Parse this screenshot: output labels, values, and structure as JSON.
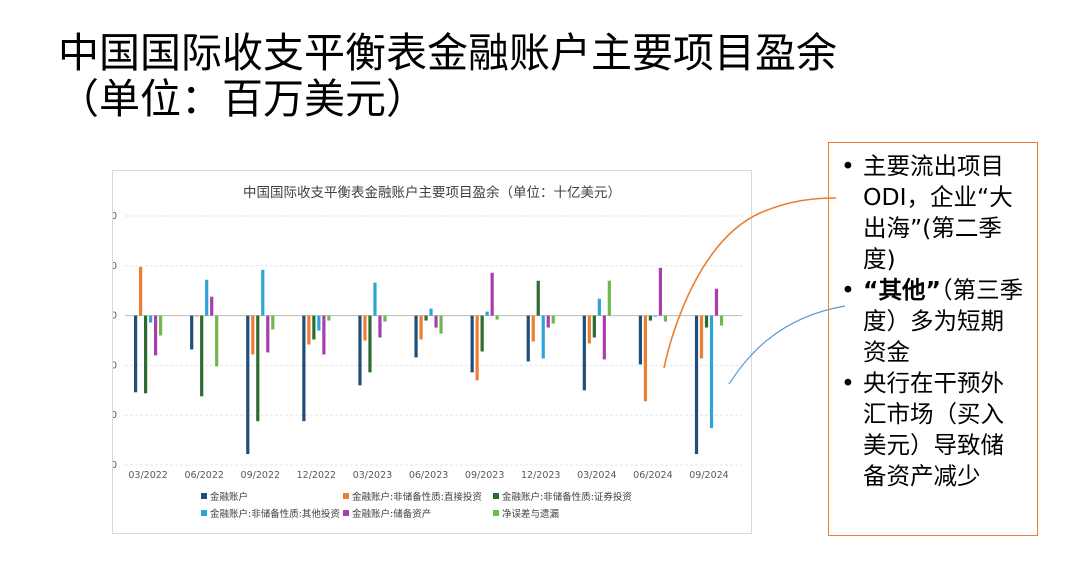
{
  "slide": {
    "title_line1": "中国国际收支平衡表金融账户主要项目盈余",
    "title_line2": "（单位：百万美元）"
  },
  "notes": [
    {
      "bullet": "•",
      "text": "主要流出项目ODI，企业“大出海”(第二季度)",
      "bold": ""
    },
    {
      "bullet": "•",
      "bold": "“其他”",
      "text": "（第三季度）多为短期资金"
    },
    {
      "bullet": "•",
      "text": "央行在干预外汇市场（买入美元）导致储备资产减少",
      "bold": ""
    }
  ],
  "colors": {
    "note_border": "#ed7d31",
    "arrow_orange": "#ed7d31",
    "arrow_blue": "#5b9bd5"
  },
  "chart_data": {
    "type": "bar",
    "title": "中国国际收支平衡表金融账户主要项目盈余（单位：十亿美元）",
    "ylim": [
      -150,
      100
    ],
    "yticks": [
      100,
      50,
      0,
      -50,
      -100,
      -150
    ],
    "grid": true,
    "legend_position": "bottom",
    "categories": [
      "03/2022",
      "06/2022",
      "09/2022",
      "12/2022",
      "03/2023",
      "06/2023",
      "09/2023",
      "12/2023",
      "03/2024",
      "06/2024",
      "09/2024"
    ],
    "series": [
      {
        "name": "金融账户",
        "color": "#1f4e79",
        "values": [
          -77,
          -34,
          -139,
          -106,
          -70,
          -42,
          -57,
          -46,
          -75,
          -49,
          -139
        ]
      },
      {
        "name": "金融账户:非储备性质:直接投资",
        "color": "#ed7d31",
        "values": [
          49,
          -1,
          -39,
          -29,
          -25,
          -24,
          -65,
          -26,
          -28,
          -86,
          -43
        ]
      },
      {
        "name": "金融账户:非储备性质:证券投资",
        "color": "#2e6b30",
        "values": [
          -78,
          -81,
          -106,
          -24,
          -57,
          -5,
          -36,
          35,
          -22,
          -5,
          -12
        ]
      },
      {
        "name": "金融账户:非储备性质:其他投资",
        "color": "#2ea3d6",
        "values": [
          -7,
          36,
          46,
          -15,
          33,
          7,
          4,
          -43,
          17,
          -1,
          -113
        ]
      },
      {
        "name": "金融账户:储备资产",
        "color": "#a63eae",
        "values": [
          -40,
          19,
          -37,
          -39,
          -22,
          -12,
          43,
          -12,
          -44,
          48,
          27
        ]
      },
      {
        "name": "净误差与遗漏",
        "color": "#70b84c",
        "values": [
          -20,
          -51,
          -14,
          -5,
          -6,
          -18,
          -4,
          -8,
          35,
          -6,
          -10
        ]
      }
    ]
  }
}
